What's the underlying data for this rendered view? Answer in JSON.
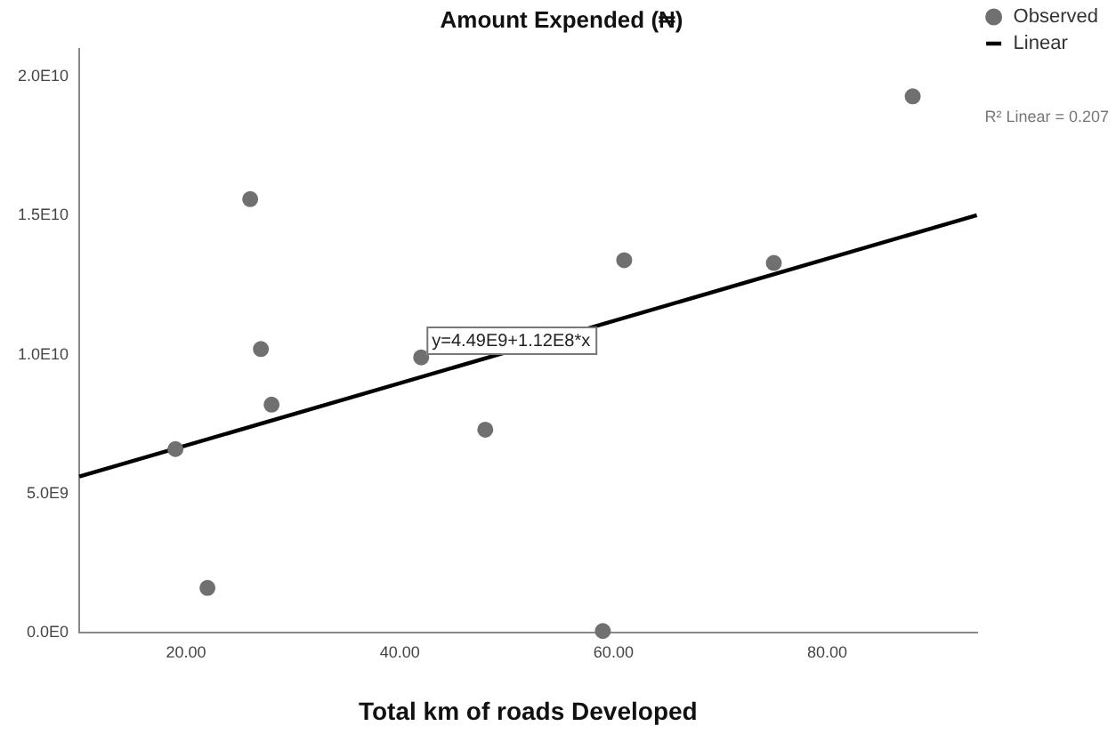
{
  "chart_data": {
    "type": "scatter",
    "title": "Amount Expended (₦)",
    "xlabel": "Total km of roads Developed",
    "x": [
      19,
      22,
      26,
      27,
      28,
      42,
      48,
      59,
      61,
      75,
      88
    ],
    "series": [
      {
        "name": "Observed",
        "color": "#707070",
        "marker": "circle",
        "values": [
          6600000000.0,
          1600000000.0,
          15600000000.0,
          10200000000.0,
          8200000000.0,
          9900000000.0,
          7300000000.0,
          50000000.0,
          13400000000.0,
          13300000000.0,
          19300000000.0
        ]
      },
      {
        "name": "Linear",
        "type": "line",
        "color": "#000000",
        "marker": "none",
        "line_style": "solid",
        "x": [
          10,
          94
        ],
        "values": [
          5610000000.0,
          15020000000.0
        ]
      }
    ],
    "xlim": [
      10,
      94
    ],
    "ylim": [
      0,
      21000000000.0
    ],
    "xticks": [
      {
        "value": 20,
        "label": "20.00"
      },
      {
        "value": 40,
        "label": "40.00"
      },
      {
        "value": 60,
        "label": "60.00"
      },
      {
        "value": 80,
        "label": "80.00"
      }
    ],
    "yticks": [
      {
        "value": 0,
        "label": "0.0E0"
      },
      {
        "value": 5000000000.0,
        "label": "5.0E9"
      },
      {
        "value": 10000000000.0,
        "label": "1.0E10"
      },
      {
        "value": 15000000000.0,
        "label": "1.5E10"
      },
      {
        "value": 20000000000.0,
        "label": "2.0E10"
      }
    ],
    "annotations": [
      "y=4.49E9+1.12E8*x",
      "R² Linear = 0.207"
    ],
    "grid": false,
    "legend": "top right"
  }
}
